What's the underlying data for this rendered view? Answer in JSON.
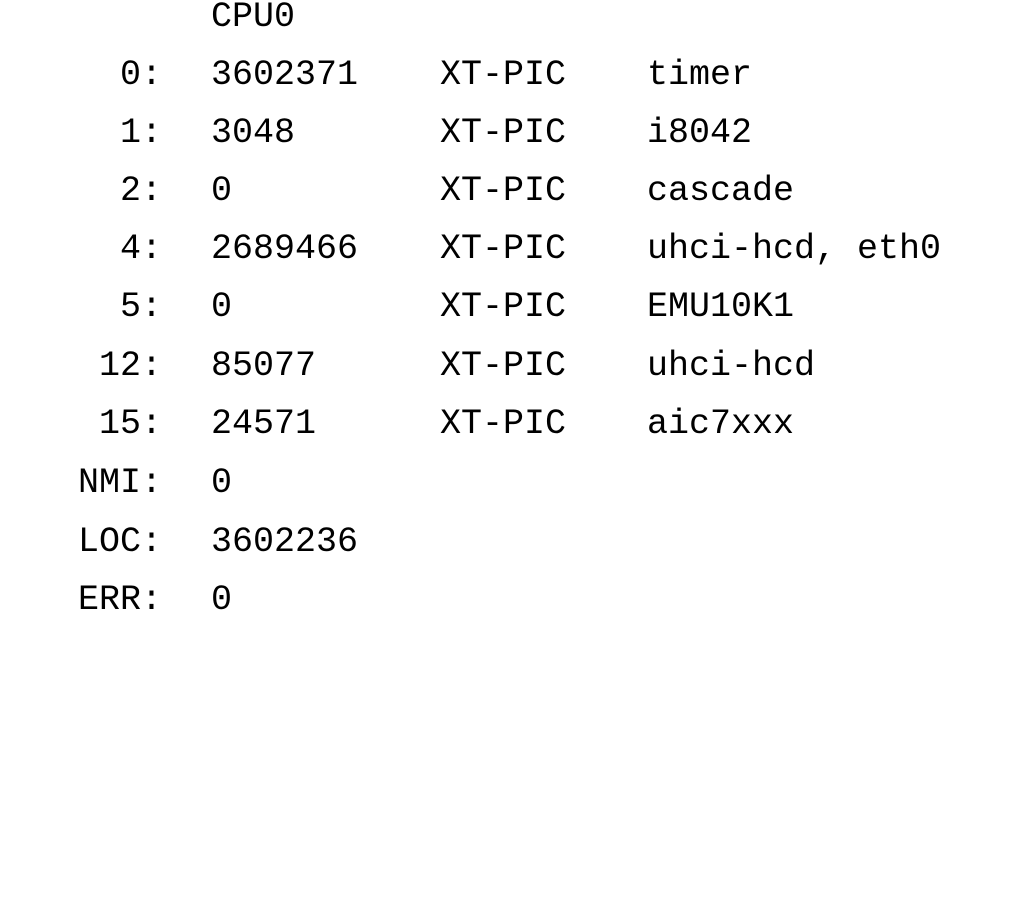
{
  "header": {
    "cpu_label": "CPU0"
  },
  "rows": [
    {
      "irq": "0:",
      "count": "3602371",
      "controller": "XT-PIC",
      "devices": "timer"
    },
    {
      "irq": "1:",
      "count": "3048",
      "controller": "XT-PIC",
      "devices": "i8042"
    },
    {
      "irq": "2:",
      "count": "0",
      "controller": "XT-PIC",
      "devices": "cascade"
    },
    {
      "irq": "4:",
      "count": "2689466",
      "controller": "XT-PIC",
      "devices": "uhci-hcd, eth0"
    },
    {
      "irq": "5:",
      "count": "0",
      "controller": "XT-PIC",
      "devices": "EMU10K1"
    },
    {
      "irq": "12:",
      "count": "85077",
      "controller": "XT-PIC",
      "devices": "uhci-hcd"
    },
    {
      "irq": "15:",
      "count": "24571",
      "controller": "XT-PIC",
      "devices": "aic7xxx"
    },
    {
      "irq": "NMI:",
      "count": "0",
      "controller": "",
      "devices": ""
    },
    {
      "irq": "LOC:",
      "count": "3602236",
      "controller": "",
      "devices": ""
    },
    {
      "irq": "ERR:",
      "count": "0",
      "controller": "",
      "devices": ""
    }
  ]
}
